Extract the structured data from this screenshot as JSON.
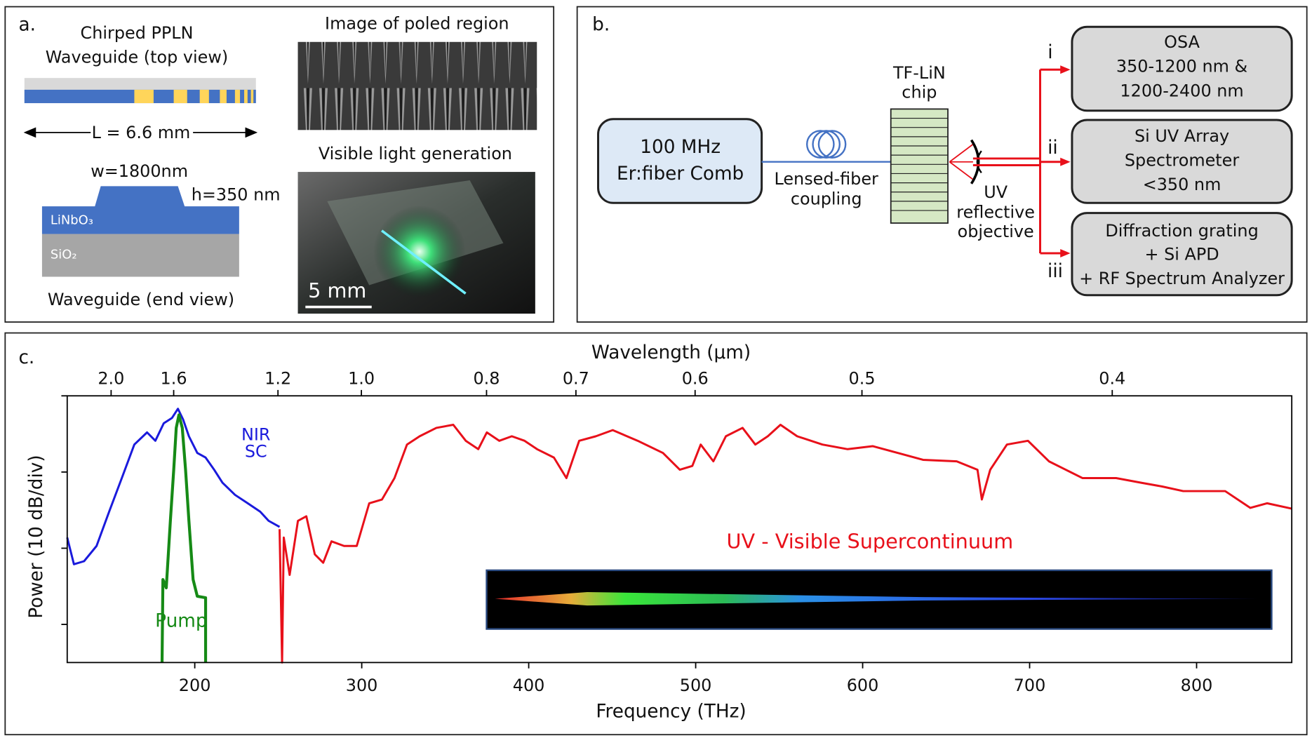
{
  "panel_a": {
    "label": "a.",
    "top_title": [
      "Chirped PPLN",
      "Waveguide (top view)"
    ],
    "length": "L = 6.6 mm",
    "width": "w=1800nm",
    "height": "h=350 nm",
    "core": "LiNbO₃",
    "substrate": "SiO₂",
    "end_title": "Waveguide (end view)",
    "image1_title": "Image of poled region",
    "image2_title": "Visible light generation",
    "scale_bar": "5 mm"
  },
  "panel_b": {
    "label": "b.",
    "source": [
      "100 MHz",
      "Er:fiber Comb"
    ],
    "coupling": [
      "Lensed-fiber",
      "coupling"
    ],
    "chip": [
      "TF-LiN",
      "chip"
    ],
    "objective": [
      "UV",
      "reflective",
      "objective"
    ],
    "branches": [
      "i",
      "ii",
      "iii"
    ],
    "detectors": [
      [
        "OSA",
        "350-1200 nm &",
        "1200-2400 nm"
      ],
      [
        "Si UV Array",
        "Spectrometer",
        "<350 nm"
      ],
      [
        "Diffraction grating",
        "+ Si APD",
        "+ RF Spectrum Analyzer"
      ]
    ]
  },
  "chart_data": {
    "type": "line",
    "label": "c.",
    "x_label": "Frequency (THz)",
    "x2_label": "Wavelength (μm)",
    "y_label": "Power (10 dB/div)",
    "xlim": [
      123.6,
      857
    ],
    "xticks": [
      200,
      300,
      400,
      500,
      600,
      700,
      800
    ],
    "x2ticks": [
      {
        "value": 2,
        "label": "2.0"
      },
      1.6,
      1.2,
      {
        "value": 1,
        "label": "1.0"
      },
      0.8,
      0.7,
      0.6,
      0.5,
      0.4
    ],
    "ylim": [
      -35,
      0
    ],
    "yticks": [
      -30,
      -20,
      -10,
      0
    ],
    "series": [
      {
        "color": "#1a1adc",
        "x": [
          123.6,
          127.6,
          133.7,
          141.2,
          148.7,
          156.3,
          163.8,
          171.4,
          176.4,
          181.4,
          186.4,
          189.9,
          193.0,
          196.5,
          201.5,
          206.5,
          211.6,
          216.6,
          224.1,
          231.7,
          239.2,
          244.2,
          250.8
        ],
        "values": [
          -18.6,
          -22.1,
          -21.7,
          -19.7,
          -15.2,
          -10.8,
          -6.4,
          -4.8,
          -5.9,
          -3.6,
          -2.9,
          -1.7,
          -3.1,
          -5.3,
          -7.5,
          -8.1,
          -9.7,
          -11.4,
          -13.0,
          -14.1,
          -15.2,
          -16.4,
          -17.2
        ]
      },
      {
        "color": "#168a16",
        "x": [
          180.4,
          180.9,
          182.9,
          185.4,
          187.4,
          188.9,
          190.5,
          192.5,
          194.5,
          196.5,
          199.0,
          201.5,
          206.5,
          206.5
        ],
        "values": [
          -35,
          -24.1,
          -25.2,
          -16.4,
          -9.7,
          -4.2,
          -2.5,
          -4.2,
          -9.7,
          -16.4,
          -24.1,
          -26.3,
          -26.5,
          -35
        ]
      },
      {
        "color": "#e8101a",
        "x": [
          250.8,
          252.3,
          253.3,
          256.8,
          261.8,
          266.8,
          271.9,
          276.9,
          281.9,
          289.4,
          297.0,
          304.5,
          312.1,
          319.6,
          327.1,
          334.7,
          344.7,
          354.8,
          362.3,
          369.8,
          374.9,
          382.4,
          389.9,
          397.5,
          405.0,
          415.1,
          422.6,
          430.2,
          440.2,
          450.3,
          465.3,
          480.4,
          490.5,
          498.0,
          503.0,
          510.6,
          518.1,
          528.1,
          535.7,
          543.2,
          550.8,
          560.8,
          575.9,
          591.0,
          606.0,
          621.1,
          636.2,
          656.3,
          668.8,
          671.4,
          676.4,
          686.4,
          699.0,
          711.6,
          721.6,
          731.7,
          751.8,
          766.8,
          779.4,
          792.0,
          807.0,
          817.1,
          832.2,
          842.2,
          857
        ],
        "values": [
          -17.5,
          -35,
          -18.6,
          -23.5,
          -16.4,
          -15.8,
          -20.8,
          -21.9,
          -19.1,
          -19.7,
          -19.7,
          -14.1,
          -13.6,
          -10.8,
          -6.4,
          -5.3,
          -4.2,
          -3.8,
          -5.9,
          -7.0,
          -4.8,
          -5.9,
          -5.3,
          -5.9,
          -7.0,
          -8.1,
          -10.8,
          -5.9,
          -5.3,
          -4.5,
          -5.9,
          -7.5,
          -9.7,
          -9.2,
          -6.4,
          -8.6,
          -5.3,
          -4.2,
          -6.4,
          -5.3,
          -3.8,
          -5.3,
          -6.4,
          -7.0,
          -6.6,
          -7.5,
          -8.4,
          -8.6,
          -9.7,
          -13.6,
          -9.7,
          -6.4,
          -5.9,
          -8.6,
          -9.7,
          -10.8,
          -10.8,
          -11.4,
          -11.9,
          -12.5,
          -12.5,
          -12.5,
          -14.7,
          -14.1,
          -14.8
        ]
      }
    ],
    "annotations": [
      {
        "text": "NIR",
        "color": "#1a1adc"
      },
      {
        "text": "SC",
        "color": "#1a1adc"
      },
      {
        "text": "Pump",
        "color": "#168a16"
      },
      {
        "text": "UV - Visible Supercontinuum",
        "color": "#e8101a"
      }
    ]
  }
}
